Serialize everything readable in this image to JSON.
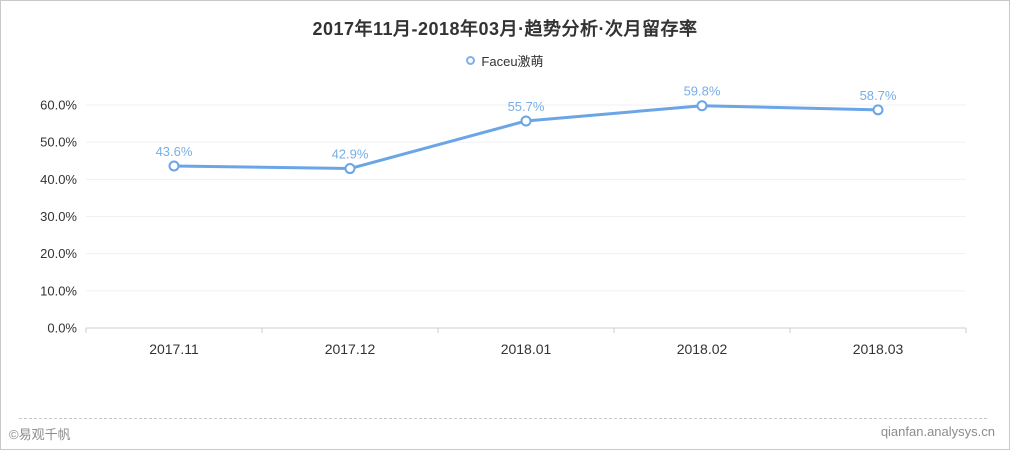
{
  "chart_data": {
    "type": "line",
    "title": "2017年11月-2018年03月·趋势分析·次月留存率",
    "legend": [
      {
        "name": "Faceu激萌",
        "color": "#6ba5e7"
      }
    ],
    "legend_position": "top-center",
    "categories": [
      "2017.11",
      "2017.12",
      "2018.01",
      "2018.02",
      "2018.03"
    ],
    "series": [
      {
        "name": "Faceu激萌",
        "values": [
          43.6,
          42.9,
          55.7,
          59.8,
          58.7
        ]
      }
    ],
    "data_labels": [
      "43.6%",
      "42.9%",
      "55.7%",
      "59.8%",
      "58.7%"
    ],
    "y_ticks": [
      {
        "label": "60.0%",
        "value": 60
      },
      {
        "label": "50.0%",
        "value": 50
      },
      {
        "label": "40.0%",
        "value": 40
      },
      {
        "label": "30.0%",
        "value": 30
      },
      {
        "label": "20.0%",
        "value": 20
      },
      {
        "label": "10.0%",
        "value": 10
      },
      {
        "label": "0.0%",
        "value": 0
      }
    ],
    "ylim": [
      0,
      60
    ],
    "grid": "horizontal",
    "colors": {
      "series_line": "#6ba5e7",
      "marker_fill": "#ffffff",
      "data_label": "#79aee5",
      "grid_line": "#f0f0f0",
      "axis_line": "#cccccc",
      "tick_label": "#333333"
    }
  },
  "footer": {
    "copyright": "©易观千帆",
    "site": "qianfan.analysys.cn"
  }
}
